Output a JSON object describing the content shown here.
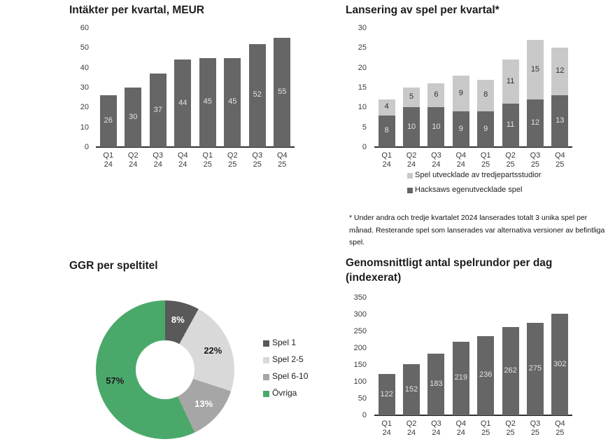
{
  "footnote": "* Under andra och tredje kvartalet 2024 lanserades totalt 3 unika spel per månad. Resterande spel som lanserades var alternativa versioner av befintliga spel.",
  "chart_data": [
    {
      "type": "bar",
      "title": "Intäkter per kvartal, MEUR",
      "categories": [
        "Q1 24",
        "Q2 24",
        "Q3 24",
        "Q4 24",
        "Q1 25",
        "Q2 25",
        "Q3 25",
        "Q4 25"
      ],
      "values": [
        26,
        30,
        37,
        44,
        45,
        45,
        52,
        55
      ],
      "ylim": [
        0,
        60
      ],
      "ytick_step": 10,
      "bar_color": "#666666",
      "label_color": "#e3e3e3"
    },
    {
      "type": "stacked-bar",
      "title": "Lansering av spel per kvartal*",
      "categories": [
        "Q1 24",
        "Q2 24",
        "Q3 24",
        "Q4 24",
        "Q1 25",
        "Q2 25",
        "Q3 25",
        "Q4 25"
      ],
      "series": [
        {
          "name": "Hacksaws egenutvecklade spel",
          "values": [
            8,
            10,
            10,
            9,
            9,
            11,
            12,
            13
          ],
          "color": "#666666",
          "label_color": "#e3e3e3"
        },
        {
          "name": "Spel utvecklade av tredjepartsstudior",
          "values": [
            4,
            5,
            6,
            9,
            8,
            11,
            15,
            12
          ],
          "color": "#c9c9c9",
          "label_color": "#2e2e2e"
        }
      ],
      "legend": [
        {
          "label": "Spel utvecklade av tredjepartsstudior",
          "color": "#c9c9c9"
        },
        {
          "label": "Hacksaws egenutvecklade spel",
          "color": "#666666"
        }
      ],
      "ylim": [
        0,
        30
      ],
      "ytick_step": 5
    },
    {
      "type": "donut",
      "title": "GGR per speltitel",
      "slices": [
        {
          "label": "Spel 1",
          "value": 8,
          "color": "#595959",
          "text_color": "#ffffff"
        },
        {
          "label": "Spel 2-5",
          "value": 22,
          "color": "#d9d9d9",
          "text_color": "#1a1a1a"
        },
        {
          "label": "Spel 6-10",
          "value": 13,
          "color": "#a6a6a6",
          "text_color": "#ffffff"
        },
        {
          "label": "Övriga",
          "value": 57,
          "color": "#4aa96a",
          "text_color": "#1a1a1a"
        }
      ]
    },
    {
      "type": "bar",
      "title": "Genomsnittligt antal spelrundor per dag (indexerat)",
      "categories": [
        "Q1 24",
        "Q2 24",
        "Q3 24",
        "Q4 24",
        "Q1 25",
        "Q2 25",
        "Q3 25",
        "Q4 25"
      ],
      "values": [
        122,
        152,
        183,
        219,
        236,
        262,
        275,
        302
      ],
      "ylim": [
        0,
        350
      ],
      "ytick_step": 50,
      "bar_color": "#666666",
      "label_color": "#e3e3e3"
    }
  ]
}
